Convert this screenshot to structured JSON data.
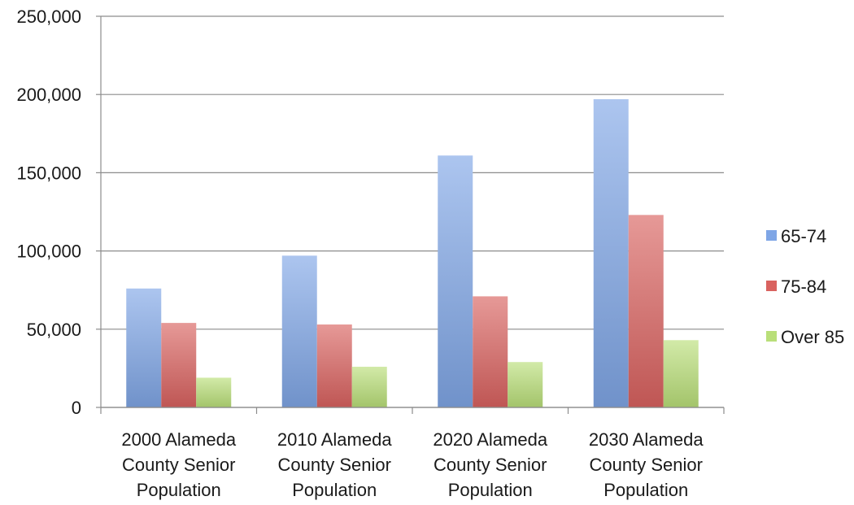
{
  "chart_data": {
    "type": "bar",
    "title": "",
    "xlabel": "",
    "ylabel": "",
    "ylim": [
      0,
      250000
    ],
    "yticks": [
      0,
      50000,
      100000,
      150000,
      200000,
      250000
    ],
    "ytick_labels": [
      "0",
      "50,000",
      "100,000",
      "150,000",
      "200,000",
      "250,000"
    ],
    "grid": true,
    "legend_position": "right",
    "categories": [
      [
        "2000 Alameda",
        "County Senior",
        "Population"
      ],
      [
        "2010 Alameda",
        "County Senior",
        "Population"
      ],
      [
        "2020 Alameda",
        "County Senior",
        "Population"
      ],
      [
        "2030 Alameda",
        "County Senior",
        "Population"
      ]
    ],
    "series": [
      {
        "name": "65-74",
        "color": "#7fa6e6",
        "values": [
          76000,
          97000,
          161000,
          197000
        ]
      },
      {
        "name": "75-84",
        "color": "#d9625f",
        "values": [
          54000,
          53000,
          71000,
          123000
        ]
      },
      {
        "name": "Over 85",
        "color": "#b9df79",
        "values": [
          19000,
          26000,
          29000,
          43000
        ]
      }
    ]
  }
}
